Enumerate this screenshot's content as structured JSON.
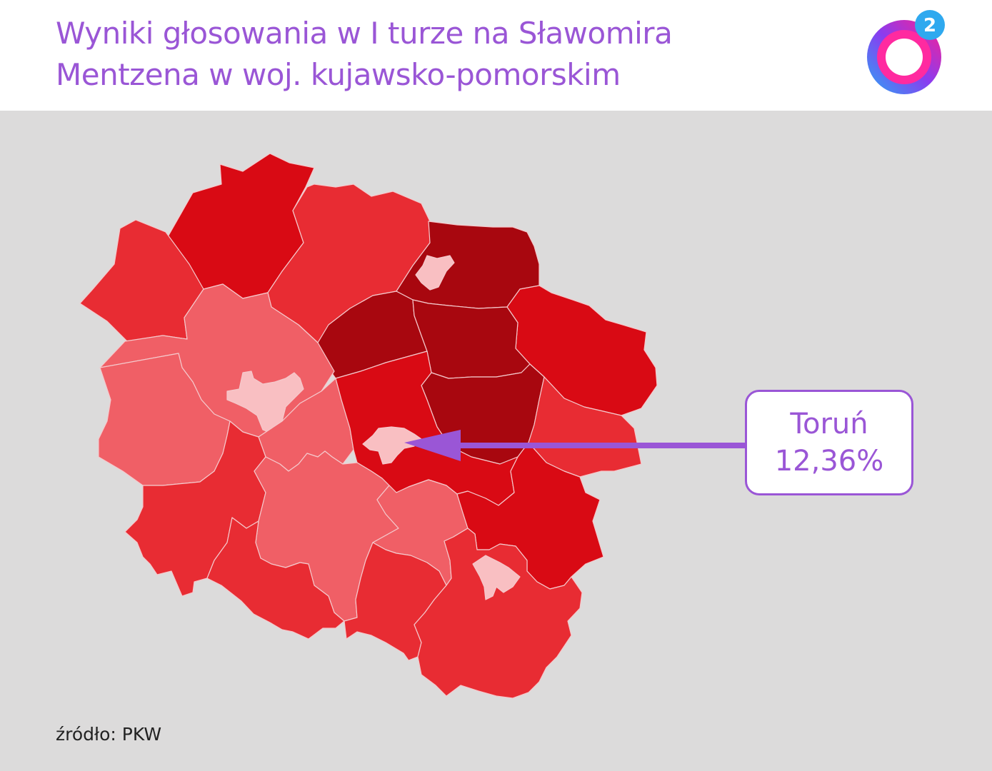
{
  "title_lines": [
    "Wyniki głosowania w I turze na Sławomira",
    "Mentzena w woj. kujawsko-pomorskim"
  ],
  "logo": {
    "icon": "o2-logo-icon",
    "superscript": "2"
  },
  "callout": {
    "city": "Toruń",
    "value": "12,36%"
  },
  "source": "źródło: PKW",
  "colors": {
    "title": "#9a56d6",
    "background": "#dcdbdb",
    "darkest": "#a8070f",
    "dark": "#d90a14",
    "medium": "#e82c33",
    "light": "#f05f66",
    "lightest": "#f9bfc2",
    "arrow": "#9a56d6"
  }
}
